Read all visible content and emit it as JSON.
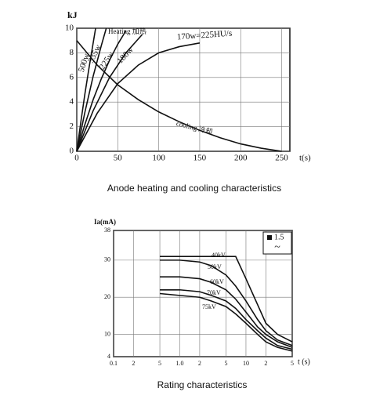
{
  "chart_data": [
    {
      "type": "line",
      "title": "Anode heating and cooling characteristics",
      "y_label": "kJ",
      "x_label": "t(s)",
      "color": "#111",
      "xlim": [
        0,
        260
      ],
      "xticks": [
        0,
        50,
        100,
        150,
        200,
        250
      ],
      "ylim": [
        0,
        10
      ],
      "yticks": [
        0,
        2,
        4,
        6,
        8,
        10
      ],
      "xscale": "linear",
      "grid": true,
      "annotations": [
        "Heating 加热",
        "cooling 冷却"
      ],
      "series": [
        {
          "name": "500w",
          "x": [
            0,
            5,
            10,
            15,
            20,
            23
          ],
          "values": [
            0,
            2.4,
            4.7,
            6.8,
            8.8,
            10
          ]
        },
        {
          "name": "335w",
          "x": [
            0,
            10,
            20,
            30,
            36
          ],
          "values": [
            0,
            3.2,
            6.1,
            8.6,
            10
          ]
        },
        {
          "name": "225w",
          "x": [
            0,
            10,
            20,
            30,
            40,
            50,
            60
          ],
          "values": [
            0,
            2.2,
            4.2,
            5.9,
            7.4,
            8.7,
            9.8
          ]
        },
        {
          "name": "180w",
          "x": [
            0,
            20,
            40,
            60,
            80
          ],
          "values": [
            0,
            3.3,
            6.0,
            8.0,
            9.5
          ]
        },
        {
          "name": "170w=225HU/s",
          "x": [
            0,
            25,
            50,
            75,
            100,
            125,
            150
          ],
          "values": [
            0,
            3.1,
            5.5,
            7.0,
            8.0,
            8.5,
            8.8
          ]
        },
        {
          "x": [
            0,
            25,
            50,
            75,
            100,
            125,
            150,
            175,
            200,
            225,
            250
          ],
          "values": [
            9,
            7.0,
            5.4,
            4.2,
            3.2,
            2.4,
            1.7,
            1.1,
            0.6,
            0.25,
            0
          ]
        }
      ]
    },
    {
      "type": "line",
      "title": "Rating characteristics",
      "y_label": "Ia(mA)",
      "x_label": "t (s)",
      "color": "#111",
      "xlim": [
        0.1,
        50
      ],
      "xscale": "log",
      "xticks": [
        0.1,
        {
          "value": 0.2,
          "label": "2"
        },
        {
          "value": 0.5,
          "label": "5"
        },
        {
          "value": 1,
          "label": "1.0"
        },
        2,
        5,
        10,
        {
          "value": 20,
          "label": "2"
        },
        {
          "value": 50,
          "label": "5"
        }
      ],
      "ylim": [
        4,
        38
      ],
      "yticks": [
        4,
        10,
        20,
        30,
        38
      ],
      "grid": true,
      "legend": {
        "label": "1.5",
        "symbol": "~"
      },
      "series": [
        {
          "name": "40kV",
          "x": [
            0.5,
            1,
            2,
            5,
            7,
            10,
            15,
            20,
            30,
            50
          ],
          "values": [
            31,
            31,
            31,
            31,
            31,
            25,
            18,
            13,
            10,
            8
          ]
        },
        {
          "name": "50kV",
          "x": [
            0.5,
            1,
            2,
            3,
            5,
            7,
            10,
            15,
            20,
            30,
            50
          ],
          "values": [
            30,
            30,
            29.5,
            28.5,
            26,
            23,
            19,
            14,
            11,
            8.5,
            7
          ]
        },
        {
          "name": "60kV",
          "x": [
            0.5,
            1,
            2,
            3,
            5,
            7,
            10,
            15,
            20,
            30,
            50
          ],
          "values": [
            25.5,
            25.5,
            25,
            24,
            22,
            19.5,
            16,
            12,
            10,
            8,
            6.5
          ]
        },
        {
          "name": "70kV",
          "x": [
            0.5,
            1,
            2,
            3,
            5,
            7,
            10,
            15,
            20,
            30,
            50
          ],
          "values": [
            22,
            22,
            21.5,
            20.5,
            19,
            17,
            14,
            11,
            9,
            7,
            6
          ]
        },
        {
          "name": "75kV",
          "x": [
            0.5,
            1,
            2,
            3,
            5,
            7,
            10,
            15,
            20,
            30,
            50
          ],
          "values": [
            21,
            20.5,
            20,
            19,
            17.5,
            15.5,
            13,
            10,
            8,
            6.5,
            5.5
          ]
        }
      ]
    }
  ]
}
